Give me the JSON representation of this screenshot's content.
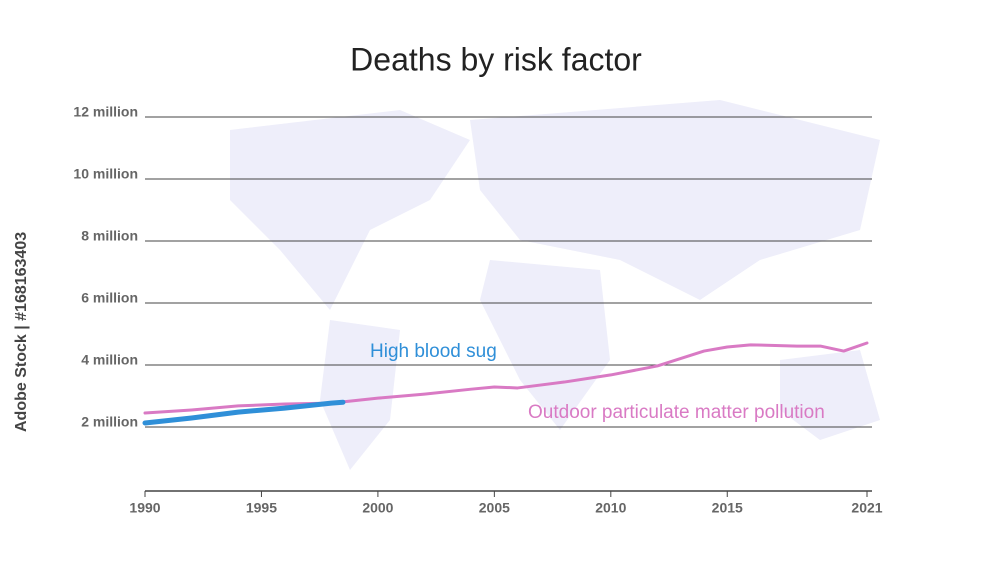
{
  "chart_data": {
    "type": "line",
    "title": "Deaths by risk factor",
    "watermark": "Adobe Stock | #168163403",
    "xlim": [
      1990,
      2021
    ],
    "xticks": [
      1990,
      1995,
      2000,
      2005,
      2010,
      2015,
      2021
    ],
    "ylim": [
      0,
      12000000
    ],
    "yticks": [
      {
        "value": 2000000,
        "label": "2 million"
      },
      {
        "value": 4000000,
        "label": "4 million"
      },
      {
        "value": 6000000,
        "label": "6 million"
      },
      {
        "value": 8000000,
        "label": "8 million"
      },
      {
        "value": 10000000,
        "label": "10 million"
      },
      {
        "value": 12000000,
        "label": "12 million"
      }
    ],
    "grid": true,
    "series": [
      {
        "name": "Outdoor particulate matter pollution",
        "color": "#d97ac4",
        "x": [
          1990,
          1992,
          1994,
          1996,
          1998,
          2000,
          2002,
          2004,
          2005,
          2006,
          2008,
          2010,
          2012,
          2014,
          2015,
          2016,
          2018,
          2019,
          2020,
          2021
        ],
        "values": [
          2450000,
          2550000,
          2680000,
          2740000,
          2770000,
          2930000,
          3060000,
          3220000,
          3290000,
          3260000,
          3450000,
          3680000,
          3970000,
          4450000,
          4580000,
          4650000,
          4610000,
          4610000,
          4450000,
          4710000
        ]
      },
      {
        "name": "High blood sug",
        "color": "#2f8fd8",
        "x": [
          1990,
          1992,
          1994,
          1996,
          1998,
          1998.5
        ],
        "values": [
          2130000,
          2290000,
          2480000,
          2610000,
          2770000,
          2800000
        ]
      }
    ]
  }
}
